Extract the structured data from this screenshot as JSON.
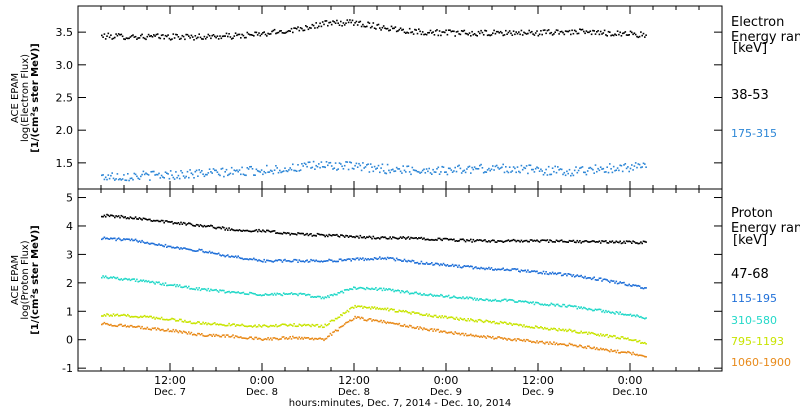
{
  "x_axis": {
    "title": "hours:minutes, Dec. 7, 2014 - Dec. 10, 2014",
    "range_hours": [
      0,
      84
    ],
    "ticks": [
      {
        "h": 12,
        "time": "12:00",
        "date": "Dec. 7"
      },
      {
        "h": 24,
        "time": "0:00",
        "date": "Dec. 8"
      },
      {
        "h": 36,
        "time": "12:00",
        "date": "Dec. 8"
      },
      {
        "h": 48,
        "time": "0:00",
        "date": "Dec. 9"
      },
      {
        "h": 60,
        "time": "12:00",
        "date": "Dec. 9"
      },
      {
        "h": 72,
        "time": "0:00",
        "date": "Dec.10"
      }
    ]
  },
  "chart_data": [
    {
      "type": "scatter",
      "ylabel": [
        "ACE EPAM",
        "log(Electron Flux)",
        "[1/(cm²s ster MeV)]"
      ],
      "ylim": [
        1.1,
        3.9
      ],
      "yticks": [
        "1.5",
        "2.0",
        "2.5",
        "3.0",
        "3.5"
      ],
      "legend": {
        "title": [
          "Electron",
          "Energy ran",
          "[keV]"
        ]
      },
      "series": [
        {
          "name": "38-53",
          "color": "#000000",
          "x": [
            3,
            10,
            16,
            20,
            24,
            28,
            32,
            36,
            40,
            44,
            48,
            52,
            56,
            60,
            64,
            68,
            72,
            74
          ],
          "y": [
            3.45,
            3.44,
            3.44,
            3.45,
            3.48,
            3.55,
            3.64,
            3.66,
            3.58,
            3.52,
            3.5,
            3.49,
            3.5,
            3.5,
            3.52,
            3.5,
            3.49,
            3.46
          ]
        },
        {
          "name": "175-315",
          "color": "#2c86d6",
          "x": [
            3,
            10,
            16,
            20,
            24,
            28,
            32,
            36,
            40,
            44,
            48,
            52,
            56,
            60,
            64,
            68,
            72,
            74
          ],
          "y": [
            1.3,
            1.32,
            1.35,
            1.37,
            1.4,
            1.43,
            1.48,
            1.45,
            1.42,
            1.4,
            1.4,
            1.42,
            1.43,
            1.4,
            1.38,
            1.42,
            1.45,
            1.45
          ]
        }
      ]
    },
    {
      "type": "scatter",
      "ylabel": [
        "ACE EPAM",
        "log(Proton Flux)",
        "[1/(cm²s ster MeV)]"
      ],
      "ylim": [
        -1.1,
        5.3
      ],
      "yticks": [
        "-1",
        "0",
        "1",
        "2",
        "3",
        "4",
        "5"
      ],
      "legend": {
        "title": [
          "Proton",
          "Energy ran",
          "[keV]"
        ]
      },
      "series": [
        {
          "name": "47-68",
          "color": "#000000",
          "x": [
            3,
            8,
            12,
            16,
            20,
            24,
            28,
            32,
            36,
            40,
            44,
            48,
            52,
            56,
            60,
            64,
            68,
            72,
            74
          ],
          "y": [
            4.4,
            4.3,
            4.15,
            4.05,
            3.9,
            3.85,
            3.75,
            3.7,
            3.65,
            3.6,
            3.6,
            3.55,
            3.5,
            3.5,
            3.5,
            3.48,
            3.47,
            3.45,
            3.45
          ]
        },
        {
          "name": "115-195",
          "color": "#1f6fd8",
          "x": [
            3,
            8,
            12,
            16,
            20,
            24,
            28,
            32,
            36,
            40,
            44,
            48,
            52,
            56,
            60,
            64,
            68,
            72,
            74
          ],
          "y": [
            3.6,
            3.5,
            3.3,
            3.15,
            2.95,
            2.8,
            2.8,
            2.8,
            2.85,
            2.9,
            2.75,
            2.65,
            2.55,
            2.5,
            2.4,
            2.3,
            2.15,
            1.95,
            1.85
          ]
        },
        {
          "name": "310-580",
          "color": "#22d8c8",
          "x": [
            3,
            8,
            12,
            16,
            20,
            24,
            28,
            32,
            36,
            40,
            44,
            48,
            52,
            56,
            60,
            64,
            68,
            72,
            74
          ],
          "y": [
            2.25,
            2.1,
            1.95,
            1.8,
            1.7,
            1.6,
            1.65,
            1.5,
            1.85,
            1.8,
            1.65,
            1.55,
            1.45,
            1.4,
            1.3,
            1.2,
            1.05,
            0.9,
            0.8
          ]
        },
        {
          "name": "795-1193",
          "color": "#c8e400",
          "x": [
            3,
            8,
            12,
            16,
            20,
            24,
            28,
            32,
            36,
            40,
            44,
            48,
            52,
            56,
            60,
            64,
            68,
            72,
            74
          ],
          "y": [
            0.9,
            0.85,
            0.75,
            0.6,
            0.55,
            0.5,
            0.55,
            0.5,
            1.2,
            1.1,
            0.95,
            0.8,
            0.7,
            0.6,
            0.45,
            0.35,
            0.2,
            0.05,
            -0.1
          ]
        },
        {
          "name": "1060-1900",
          "color": "#e88a1a",
          "x": [
            3,
            8,
            12,
            16,
            20,
            24,
            28,
            32,
            36,
            40,
            44,
            48,
            52,
            56,
            60,
            64,
            68,
            72,
            74
          ],
          "y": [
            0.6,
            0.45,
            0.35,
            0.2,
            0.15,
            0.05,
            0.1,
            0.05,
            0.8,
            0.65,
            0.45,
            0.3,
            0.15,
            0.05,
            -0.05,
            -0.15,
            -0.3,
            -0.45,
            -0.55
          ]
        }
      ]
    }
  ]
}
